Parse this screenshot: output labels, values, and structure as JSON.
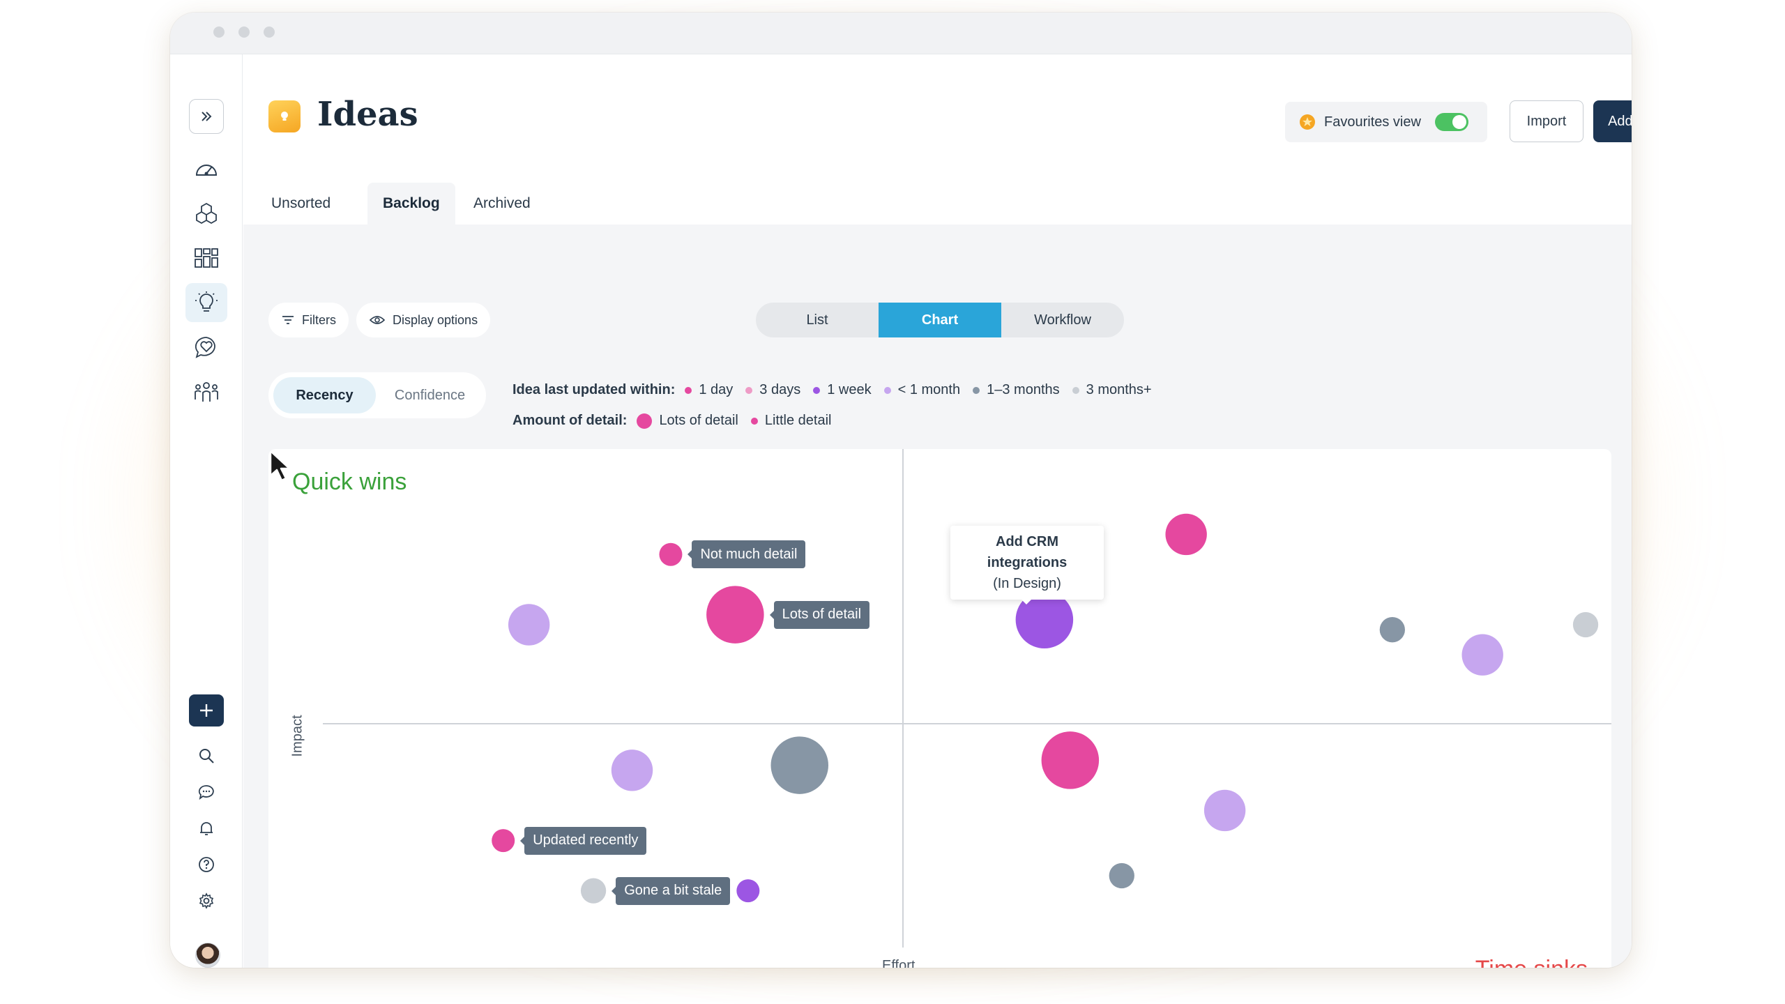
{
  "header": {
    "title": "Ideas",
    "favourites_label": "Favourites view",
    "import_label": "Import",
    "add_label": "Add an Idea"
  },
  "tabs": [
    {
      "label": "Unsorted"
    },
    {
      "label": "Backlog"
    },
    {
      "label": "Archived"
    }
  ],
  "toolbar": {
    "filters_label": "Filters",
    "display_label": "Display options",
    "views": [
      {
        "label": "List"
      },
      {
        "label": "Chart"
      },
      {
        "label": "Workflow"
      }
    ]
  },
  "color_mode": [
    {
      "label": "Recency"
    },
    {
      "label": "Confidence"
    }
  ],
  "legend": {
    "recency_label": "Idea last updated within:",
    "recency_items": [
      {
        "label": "1 day",
        "color": "#e5489f"
      },
      {
        "label": "3 days",
        "color": "#ee9bc6"
      },
      {
        "label": "1 week",
        "color": "#9c56e3"
      },
      {
        "label": "< 1 month",
        "color": "#c6a6ef"
      },
      {
        "label": "1–3 months",
        "color": "#8796a5"
      },
      {
        "label": "3 months+",
        "color": "#c9ced4"
      }
    ],
    "detail_label": "Amount of detail:",
    "detail_items": [
      {
        "label": "Lots of detail",
        "color": "#e5489f",
        "size": "large"
      },
      {
        "label": "Little detail",
        "color": "#e5489f",
        "size": "small"
      }
    ]
  },
  "chart_data": {
    "type": "scatter",
    "xlabel": "Effort",
    "ylabel": "Impact",
    "quadrant_labels": {
      "top_left": "Quick wins",
      "bottom_right": "Time sinks"
    },
    "xlim": [
      0,
      100
    ],
    "ylim": [
      0,
      100
    ],
    "points": [
      {
        "x": 27,
        "y": 79,
        "r": 10,
        "recency": "1 day"
      },
      {
        "x": 32,
        "y": 67,
        "r": 25,
        "recency": "1 day"
      },
      {
        "x": 16,
        "y": 65,
        "r": 18,
        "recency": "< 1 month"
      },
      {
        "x": 56,
        "y": 66,
        "r": 25,
        "recency": "1 week"
      },
      {
        "x": 67,
        "y": 83,
        "r": 18,
        "recency": "1 day"
      },
      {
        "x": 83,
        "y": 64,
        "r": 11,
        "recency": "1–3 months"
      },
      {
        "x": 90,
        "y": 59,
        "r": 18,
        "recency": "< 1 month"
      },
      {
        "x": 98,
        "y": 65,
        "r": 11,
        "recency": "3 months+"
      },
      {
        "x": 24,
        "y": 36,
        "r": 18,
        "recency": "< 1 month"
      },
      {
        "x": 37,
        "y": 37,
        "r": 25,
        "recency": "1–3 months"
      },
      {
        "x": 14,
        "y": 22,
        "r": 10,
        "recency": "1 day"
      },
      {
        "x": 21,
        "y": 12,
        "r": 11,
        "recency": "3 months+"
      },
      {
        "x": 33,
        "y": 12,
        "r": 10,
        "recency": "1 week"
      },
      {
        "x": 58,
        "y": 38,
        "r": 25,
        "recency": "1 day"
      },
      {
        "x": 70,
        "y": 28,
        "r": 18,
        "recency": "< 1 month"
      },
      {
        "x": 62,
        "y": 15,
        "r": 11,
        "recency": "1–3 months"
      }
    ],
    "annotations": [
      {
        "text": "Not much detail",
        "point": 0
      },
      {
        "text": "Lots of detail",
        "point": 1
      },
      {
        "text": "Updated recently",
        "point": 10
      },
      {
        "text": "Gone a bit stale",
        "point": 11
      }
    ],
    "hover": {
      "title": "Add CRM integrations",
      "status": "(In Design)",
      "point": 3
    }
  }
}
